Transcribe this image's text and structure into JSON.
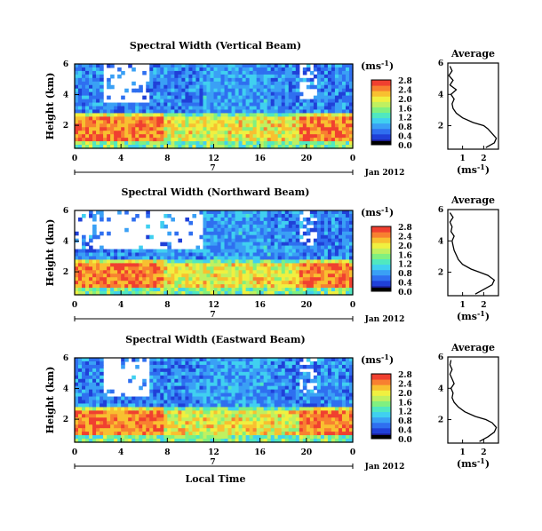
{
  "chart_data": {
    "type": "heatmap",
    "xlabel": "Local Time",
    "ylabel": "Height (km)",
    "date_label": "Jan 2012",
    "day_label": "7",
    "colorbar_unit": "(ms",
    "colorbar_unit_sup": "-1",
    "colorbar_unit_close": ")",
    "average_title": "Average",
    "panels": [
      {
        "title": "Spectral Width (Vertical Beam)",
        "x_ticks": [
          "0",
          "4",
          "8",
          "12",
          "16",
          "20",
          "0"
        ],
        "y_ticks": [
          "6",
          "4",
          "2"
        ],
        "xlim": [
          0,
          24
        ],
        "ylim": [
          0.5,
          6
        ],
        "colorbar_ticks": [
          "0.0",
          "0.4",
          "0.8",
          "1.2",
          "1.6",
          "2.0",
          "2.4",
          "2.8"
        ],
        "colorbar_range": [
          0,
          2.8
        ],
        "avg_x_ticks": [
          "1",
          "2"
        ],
        "avg_y_ticks": [
          "6",
          "4",
          "2"
        ],
        "avg_profile": {
          "height": [
            0.6,
            0.9,
            1.2,
            1.5,
            1.8,
            2.0,
            2.2,
            2.5,
            2.8,
            3.1,
            3.4,
            3.7,
            4.0,
            4.3,
            4.6,
            4.9,
            5.2,
            5.5,
            5.8
          ],
          "width": [
            2.1,
            2.5,
            2.6,
            2.4,
            2.2,
            2.0,
            1.5,
            1.0,
            0.7,
            0.55,
            0.5,
            0.6,
            0.45,
            0.7,
            0.4,
            0.55,
            0.35,
            0.5,
            0.4
          ]
        }
      },
      {
        "title": "Spectral Width (Northward Beam)",
        "x_ticks": [
          "0",
          "4",
          "8",
          "12",
          "16",
          "20",
          "0"
        ],
        "y_ticks": [
          "6",
          "4",
          "2"
        ],
        "xlim": [
          0,
          24
        ],
        "ylim": [
          0.5,
          6
        ],
        "colorbar_ticks": [
          "0.0",
          "0.4",
          "0.8",
          "1.2",
          "1.6",
          "2.0",
          "2.4",
          "2.8"
        ],
        "colorbar_range": [
          0,
          2.8
        ],
        "avg_x_ticks": [
          "1",
          "2"
        ],
        "avg_y_ticks": [
          "6",
          "4",
          "2"
        ],
        "avg_profile": {
          "height": [
            0.6,
            0.9,
            1.2,
            1.5,
            1.8,
            2.0,
            2.2,
            2.5,
            2.8,
            3.1,
            3.4,
            3.7,
            4.0,
            4.3,
            4.6,
            4.9,
            5.2,
            5.5,
            5.8
          ],
          "width": [
            1.6,
            2.0,
            2.4,
            2.5,
            2.2,
            1.8,
            1.4,
            1.0,
            0.8,
            0.7,
            0.6,
            0.55,
            0.5,
            0.6,
            0.45,
            0.5,
            0.4,
            0.55,
            0.4
          ]
        }
      },
      {
        "title": "Spectral Width (Eastward Beam)",
        "x_ticks": [
          "0",
          "4",
          "8",
          "12",
          "16",
          "20",
          "0"
        ],
        "y_ticks": [
          "6",
          "4",
          "2"
        ],
        "xlim": [
          0,
          24
        ],
        "ylim": [
          0.5,
          6
        ],
        "colorbar_ticks": [
          "0.0",
          "0.4",
          "0.8",
          "1.2",
          "1.6",
          "2.0",
          "2.4",
          "2.8"
        ],
        "colorbar_range": [
          0,
          2.8
        ],
        "avg_x_ticks": [
          "1",
          "2"
        ],
        "avg_y_ticks": [
          "6",
          "4",
          "2"
        ],
        "avg_profile": {
          "height": [
            0.6,
            0.9,
            1.2,
            1.5,
            1.8,
            2.0,
            2.2,
            2.5,
            2.8,
            3.1,
            3.4,
            3.7,
            4.0,
            4.3,
            4.6,
            4.9,
            5.2,
            5.5,
            5.8
          ],
          "width": [
            1.8,
            2.2,
            2.5,
            2.6,
            2.4,
            2.1,
            1.6,
            1.1,
            0.8,
            0.6,
            0.5,
            0.55,
            0.45,
            0.6,
            0.5,
            0.4,
            0.5,
            0.4,
            0.45
          ]
        }
      }
    ],
    "colormap": [
      "#1a1a8c",
      "#2040d8",
      "#2f6ff0",
      "#3aa0f5",
      "#40d0f0",
      "#50e8c0",
      "#80f080",
      "#c0f060",
      "#f0f040",
      "#f8c030",
      "#f88030",
      "#f04030"
    ]
  }
}
